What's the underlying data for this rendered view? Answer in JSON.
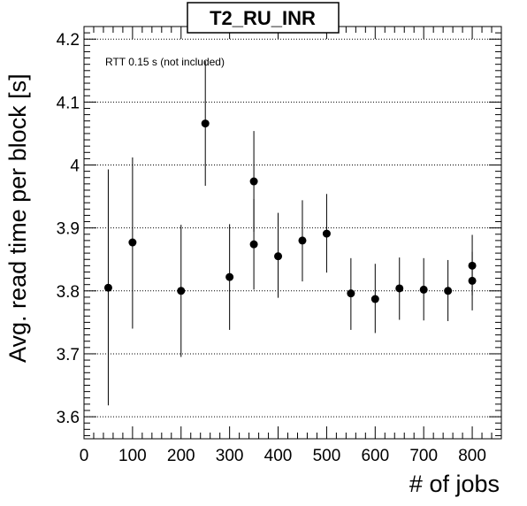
{
  "chart_data": {
    "type": "scatter",
    "title": "T2_RU_INR",
    "annotation": "RTT 0.15 s (not included)",
    "xlabel": "# of jobs",
    "ylabel": "Avg. read time per block [s]",
    "xlim": [
      0,
      860
    ],
    "ylim": [
      3.565,
      4.22
    ],
    "x_ticks": [
      0,
      100,
      200,
      300,
      400,
      500,
      600,
      700,
      800
    ],
    "y_ticks": [
      3.6,
      3.7,
      3.8,
      3.9,
      4.0,
      4.1,
      4.2
    ],
    "x_tick_labels": [
      "0",
      "100",
      "200",
      "300",
      "400",
      "500",
      "600",
      "700",
      "800"
    ],
    "y_tick_labels": [
      "3.6",
      "3.7",
      "3.8",
      "3.9",
      "4",
      "4.1",
      "4.2"
    ],
    "grid": "horizontal dotted",
    "points": [
      {
        "x": 50,
        "y": 3.805,
        "ylow": 3.618,
        "yhigh": 3.993
      },
      {
        "x": 100,
        "y": 3.877,
        "ylow": 3.74,
        "yhigh": 4.012
      },
      {
        "x": 200,
        "y": 3.8,
        "ylow": 3.695,
        "yhigh": 3.905
      },
      {
        "x": 250,
        "y": 4.066,
        "ylow": 3.967,
        "yhigh": 4.165
      },
      {
        "x": 300,
        "y": 3.822,
        "ylow": 3.738,
        "yhigh": 3.906
      },
      {
        "x": 350,
        "y": 3.974,
        "ylow": 3.894,
        "yhigh": 4.054
      },
      {
        "x": 350,
        "y": 3.874,
        "ylow": 3.802,
        "yhigh": 3.946
      },
      {
        "x": 400,
        "y": 3.855,
        "ylow": 3.789,
        "yhigh": 3.924
      },
      {
        "x": 450,
        "y": 3.88,
        "ylow": 3.815,
        "yhigh": 3.944
      },
      {
        "x": 500,
        "y": 3.891,
        "ylow": 3.829,
        "yhigh": 3.954
      },
      {
        "x": 550,
        "y": 3.796,
        "ylow": 3.738,
        "yhigh": 3.852
      },
      {
        "x": 600,
        "y": 3.787,
        "ylow": 3.733,
        "yhigh": 3.843
      },
      {
        "x": 650,
        "y": 3.804,
        "ylow": 3.754,
        "yhigh": 3.853
      },
      {
        "x": 700,
        "y": 3.802,
        "ylow": 3.753,
        "yhigh": 3.852
      },
      {
        "x": 750,
        "y": 3.8,
        "ylow": 3.752,
        "yhigh": 3.849
      },
      {
        "x": 800,
        "y": 3.84,
        "ylow": 3.793,
        "yhigh": 3.889
      },
      {
        "x": 800,
        "y": 3.816,
        "ylow": 3.769,
        "yhigh": 3.862
      }
    ]
  }
}
